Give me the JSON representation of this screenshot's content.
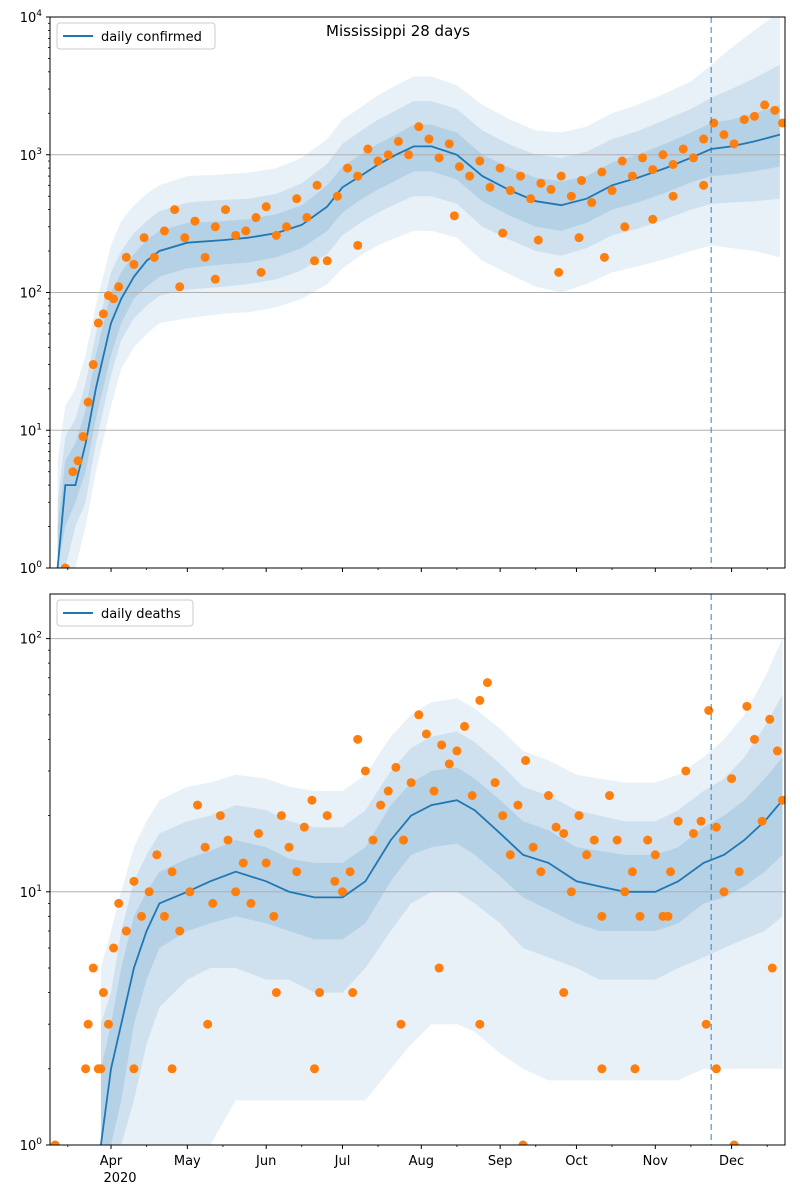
{
  "figure": {
    "title": "Mississippi 28 days",
    "year_label": "2020"
  },
  "colors": {
    "line": "#1f77b4",
    "points": "#ff7f0e",
    "band": "#1f77b4",
    "grid": "#b0b0b0",
    "forecast_line": "#1f77b4"
  },
  "chart_data": [
    {
      "type": "line",
      "name": "confirmed",
      "legend": "daily confirmed",
      "y_scale": "log",
      "ylim": [
        1,
        10000
      ],
      "y_ticks": [
        {
          "v": 1,
          "b": "10",
          "e": "0"
        },
        {
          "v": 10,
          "b": "10",
          "e": "1"
        },
        {
          "v": 100,
          "b": "10",
          "e": "2"
        },
        {
          "v": 1000,
          "b": "10",
          "e": "3"
        },
        {
          "v": 10000,
          "b": "10",
          "e": "4"
        }
      ],
      "grid": "horizontal at decades",
      "legend_position": "top-left",
      "forecast_start": "2020-11-23",
      "line": {
        "x": [
          "2020-03-11",
          "2020-03-14",
          "2020-03-18",
          "2020-03-22",
          "2020-03-26",
          "2020-04-01",
          "2020-04-05",
          "2020-04-10",
          "2020-04-15",
          "2020-04-20",
          "2020-05-01",
          "2020-05-15",
          "2020-05-25",
          "2020-06-05",
          "2020-06-15",
          "2020-06-25",
          "2020-07-01",
          "2020-07-08",
          "2020-07-15",
          "2020-07-22",
          "2020-07-29",
          "2020-08-05",
          "2020-08-15",
          "2020-08-25",
          "2020-09-05",
          "2020-09-15",
          "2020-09-25",
          "2020-10-05",
          "2020-10-15",
          "2020-10-25",
          "2020-11-05",
          "2020-11-15",
          "2020-11-23",
          "2020-12-01",
          "2020-12-10",
          "2020-12-20"
        ],
        "y": [
          1,
          4,
          4,
          8,
          20,
          60,
          90,
          130,
          170,
          200,
          230,
          240,
          250,
          270,
          310,
          420,
          580,
          700,
          850,
          1000,
          1150,
          1150,
          1000,
          700,
          550,
          460,
          430,
          480,
          600,
          680,
          800,
          950,
          1100,
          1150,
          1250,
          1400
        ]
      },
      "band_inner": {
        "lower": [
          1,
          2,
          3,
          5,
          12,
          35,
          60,
          90,
          110,
          130,
          150,
          160,
          165,
          180,
          210,
          280,
          380,
          470,
          560,
          650,
          760,
          760,
          660,
          460,
          360,
          300,
          280,
          320,
          400,
          450,
          530,
          630,
          700,
          720,
          760,
          820
        ],
        "upper": [
          2,
          6,
          8,
          14,
          35,
          100,
          140,
          190,
          240,
          280,
          320,
          330,
          340,
          370,
          430,
          600,
          820,
          1000,
          1200,
          1400,
          1650,
          1650,
          1450,
          1000,
          800,
          680,
          640,
          700,
          880,
          1000,
          1200,
          1450,
          1700,
          1800,
          2000,
          2300
        ]
      },
      "band_mid": {
        "lower": [
          1,
          1,
          2,
          3,
          8,
          25,
          45,
          65,
          80,
          95,
          105,
          110,
          115,
          125,
          145,
          190,
          260,
          320,
          380,
          440,
          500,
          500,
          440,
          300,
          240,
          200,
          185,
          210,
          260,
          290,
          340,
          400,
          440,
          450,
          460,
          480
        ],
        "upper": [
          3,
          9,
          12,
          22,
          50,
          140,
          200,
          270,
          330,
          390,
          450,
          470,
          480,
          520,
          620,
          860,
          1200,
          1480,
          1800,
          2100,
          2450,
          2450,
          2150,
          1500,
          1180,
          1000,
          950,
          1050,
          1300,
          1480,
          1800,
          2150,
          2600,
          3000,
          3600,
          4500
        ]
      },
      "band_outer": {
        "lower": [
          1,
          1,
          1,
          2,
          5,
          15,
          28,
          40,
          50,
          60,
          65,
          70,
          72,
          78,
          90,
          115,
          150,
          185,
          220,
          250,
          280,
          280,
          250,
          170,
          135,
          110,
          100,
          115,
          140,
          155,
          175,
          200,
          220,
          210,
          200,
          180
        ],
        "upper": [
          6,
          15,
          20,
          35,
          80,
          220,
          330,
          430,
          520,
          600,
          700,
          720,
          740,
          800,
          950,
          1300,
          1800,
          2200,
          2700,
          3200,
          3700,
          3700,
          3200,
          2300,
          1800,
          1500,
          1450,
          1600,
          2000,
          2300,
          2800,
          3400,
          4500,
          6000,
          8000,
          11000
        ]
      },
      "points": {
        "x": [
          "2020-03-14",
          "2020-03-17",
          "2020-03-19",
          "2020-03-21",
          "2020-03-23",
          "2020-03-25",
          "2020-03-27",
          "2020-03-29",
          "2020-03-31",
          "2020-04-02",
          "2020-04-04",
          "2020-04-07",
          "2020-04-10",
          "2020-04-14",
          "2020-04-18",
          "2020-04-22",
          "2020-04-26",
          "2020-04-30",
          "2020-05-04",
          "2020-05-08",
          "2020-05-12",
          "2020-05-16",
          "2020-05-20",
          "2020-05-24",
          "2020-05-28",
          "2020-06-01",
          "2020-06-05",
          "2020-06-09",
          "2020-06-13",
          "2020-06-17",
          "2020-06-21",
          "2020-06-25",
          "2020-06-29",
          "2020-07-03",
          "2020-07-07",
          "2020-07-11",
          "2020-07-15",
          "2020-07-19",
          "2020-07-23",
          "2020-07-27",
          "2020-07-31",
          "2020-08-04",
          "2020-08-08",
          "2020-08-12",
          "2020-08-16",
          "2020-08-20",
          "2020-08-24",
          "2020-08-28",
          "2020-09-01",
          "2020-09-05",
          "2020-09-09",
          "2020-09-13",
          "2020-09-17",
          "2020-09-21",
          "2020-09-25",
          "2020-09-29",
          "2020-10-03",
          "2020-10-07",
          "2020-10-11",
          "2020-10-15",
          "2020-10-19",
          "2020-10-23",
          "2020-10-27",
          "2020-10-31",
          "2020-11-04",
          "2020-11-08",
          "2020-11-12",
          "2020-11-16",
          "2020-11-20",
          "2020-11-24",
          "2020-11-28",
          "2020-12-02",
          "2020-12-06",
          "2020-12-10",
          "2020-12-14",
          "2020-12-18",
          "2020-12-21"
        ],
        "y": [
          1,
          5,
          6,
          9,
          16,
          30,
          60,
          70,
          95,
          90,
          110,
          180,
          160,
          250,
          180,
          280,
          400,
          250,
          330,
          180,
          300,
          400,
          260,
          280,
          350,
          420,
          260,
          300,
          480,
          350,
          600,
          170,
          500,
          800,
          700,
          1100,
          900,
          1000,
          1250,
          1000,
          1600,
          1300,
          950,
          1200,
          820,
          700,
          900,
          580,
          800,
          550,
          700,
          480,
          620,
          560,
          700,
          500,
          650,
          450,
          750,
          550,
          900,
          700,
          950,
          780,
          1000,
          850,
          1100,
          950,
          1300,
          1700,
          1400,
          1200,
          1800,
          1900,
          2300,
          2100,
          1700
        ]
      },
      "points_low": {
        "x": [
          "2020-04-28",
          "2020-05-12",
          "2020-05-30",
          "2020-06-20",
          "2020-07-07",
          "2020-08-14",
          "2020-09-02",
          "2020-09-16",
          "2020-09-24",
          "2020-10-02",
          "2020-10-12",
          "2020-10-20",
          "2020-10-31",
          "2020-11-08",
          "2020-11-20"
        ],
        "y": [
          110,
          125,
          140,
          170,
          220,
          360,
          270,
          240,
          140,
          250,
          180,
          300,
          340,
          500,
          600
        ]
      }
    },
    {
      "type": "line",
      "name": "deaths",
      "legend": "daily deaths",
      "y_scale": "log",
      "ylim": [
        1,
        150
      ],
      "y_ticks": [
        {
          "v": 1,
          "b": "10",
          "e": "0"
        },
        {
          "v": 10,
          "b": "10",
          "e": "1"
        },
        {
          "v": 100,
          "b": "10",
          "e": "2"
        }
      ],
      "grid": "horizontal at decades",
      "legend_position": "top-left",
      "forecast_start": "2020-11-23",
      "line": {
        "x": [
          "2020-03-28",
          "2020-04-01",
          "2020-04-05",
          "2020-04-10",
          "2020-04-15",
          "2020-04-20",
          "2020-05-01",
          "2020-05-10",
          "2020-05-20",
          "2020-06-01",
          "2020-06-10",
          "2020-06-20",
          "2020-07-01",
          "2020-07-10",
          "2020-07-20",
          "2020-07-28",
          "2020-08-05",
          "2020-08-15",
          "2020-08-22",
          "2020-09-01",
          "2020-09-10",
          "2020-09-20",
          "2020-10-01",
          "2020-10-10",
          "2020-10-20",
          "2020-11-01",
          "2020-11-10",
          "2020-11-20",
          "2020-11-28",
          "2020-12-06",
          "2020-12-14",
          "2020-12-21"
        ],
        "y": [
          1,
          2,
          3,
          5,
          7,
          9,
          10,
          11,
          12,
          11,
          10,
          9.5,
          9.5,
          11,
          16,
          20,
          22,
          23,
          21,
          17,
          14,
          13,
          11,
          10.5,
          10,
          10,
          11,
          13,
          14,
          16,
          19,
          23
        ]
      },
      "band_inner": {
        "lower": [
          1,
          1,
          1.5,
          3,
          4.5,
          6,
          7,
          7.5,
          8,
          7.5,
          7,
          6.5,
          6.5,
          7.5,
          11,
          14,
          15,
          15.5,
          14,
          11.5,
          9.5,
          8.5,
          7.5,
          7,
          7,
          7,
          7.5,
          9,
          9.5,
          10.5,
          12,
          14
        ],
        "upper": [
          2,
          3,
          5,
          8,
          10,
          12,
          13.5,
          14.5,
          16,
          15,
          13.5,
          13,
          13,
          15,
          22,
          27,
          30,
          31,
          28,
          23,
          19,
          17.5,
          15,
          14.5,
          14,
          14,
          15,
          18,
          20,
          23,
          28,
          34
        ]
      },
      "band_mid": {
        "lower": [
          1,
          1,
          1,
          1.5,
          2.5,
          3.5,
          4.5,
          5,
          5,
          4.5,
          4.5,
          4,
          4,
          5,
          7,
          9,
          10,
          10,
          9,
          7.5,
          6,
          5.5,
          5,
          4.5,
          4.5,
          4.5,
          5,
          5.5,
          6,
          6.5,
          7,
          8
        ],
        "upper": [
          3,
          4,
          7,
          11,
          14,
          17,
          19,
          20,
          22,
          21,
          19,
          18,
          18,
          21,
          30,
          37,
          41,
          43,
          39,
          32,
          26,
          24,
          21,
          20,
          19,
          19,
          21,
          25,
          28,
          34,
          45,
          60
        ]
      },
      "band_outer": {
        "lower": [
          1,
          1,
          1,
          1,
          1,
          1,
          1,
          1,
          1.5,
          1.5,
          1.5,
          1.5,
          1.5,
          1.5,
          2,
          2.5,
          3,
          3,
          2.8,
          2.3,
          2,
          1.8,
          1.8,
          1.8,
          1.8,
          1.8,
          1.8,
          2,
          2,
          2,
          2,
          2
        ],
        "upper": [
          5,
          7,
          10,
          15,
          19,
          23,
          26,
          27,
          29,
          28,
          26,
          25,
          25,
          29,
          41,
          50,
          56,
          58,
          53,
          44,
          36,
          33,
          29,
          28,
          27,
          27,
          29,
          34,
          40,
          50,
          70,
          100
        ]
      },
      "points": {
        "x": [
          "2020-03-10",
          "2020-03-22",
          "2020-03-23",
          "2020-03-25",
          "2020-03-27",
          "2020-03-29",
          "2020-03-31",
          "2020-04-02",
          "2020-04-04",
          "2020-04-07",
          "2020-04-10",
          "2020-04-13",
          "2020-04-16",
          "2020-04-19",
          "2020-04-22",
          "2020-04-25",
          "2020-04-28",
          "2020-05-02",
          "2020-05-05",
          "2020-05-08",
          "2020-05-11",
          "2020-05-14",
          "2020-05-17",
          "2020-05-20",
          "2020-05-23",
          "2020-05-26",
          "2020-05-29",
          "2020-06-01",
          "2020-06-04",
          "2020-06-07",
          "2020-06-10",
          "2020-06-13",
          "2020-06-16",
          "2020-06-19",
          "2020-06-22",
          "2020-06-25",
          "2020-06-28",
          "2020-07-01",
          "2020-07-04",
          "2020-07-07",
          "2020-07-10",
          "2020-07-13",
          "2020-07-16",
          "2020-07-19",
          "2020-07-22",
          "2020-07-25",
          "2020-07-28",
          "2020-07-31",
          "2020-08-03",
          "2020-08-06",
          "2020-08-09",
          "2020-08-12",
          "2020-08-15",
          "2020-08-18",
          "2020-08-21",
          "2020-08-24",
          "2020-08-27",
          "2020-08-30",
          "2020-09-02",
          "2020-09-05",
          "2020-09-08",
          "2020-09-11",
          "2020-09-14",
          "2020-09-17",
          "2020-09-20",
          "2020-09-23",
          "2020-09-26",
          "2020-09-29",
          "2020-10-02",
          "2020-10-05",
          "2020-10-08",
          "2020-10-11",
          "2020-10-14",
          "2020-10-17",
          "2020-10-20",
          "2020-10-23",
          "2020-10-26",
          "2020-10-29",
          "2020-11-01",
          "2020-11-04",
          "2020-11-07",
          "2020-11-10",
          "2020-11-13",
          "2020-11-16",
          "2020-11-19",
          "2020-11-22",
          "2020-11-25",
          "2020-11-28",
          "2020-12-01",
          "2020-12-04",
          "2020-12-07",
          "2020-12-10",
          "2020-12-13",
          "2020-12-16",
          "2020-12-19",
          "2020-12-21"
        ],
        "y": [
          1,
          2,
          3,
          5,
          2,
          4,
          3,
          6,
          9,
          7,
          11,
          8,
          10,
          14,
          8,
          12,
          7,
          10,
          22,
          15,
          9,
          20,
          16,
          10,
          13,
          9,
          17,
          13,
          8,
          20,
          15,
          12,
          18,
          23,
          4,
          20,
          11,
          10,
          12,
          40,
          30,
          16,
          22,
          25,
          31,
          16,
          27,
          50,
          42,
          25,
          38,
          32,
          36,
          45,
          24,
          57,
          67,
          27,
          20,
          14,
          22,
          33,
          15,
          12,
          24,
          18,
          17,
          10,
          20,
          14,
          16,
          8,
          24,
          16,
          10,
          12,
          8,
          16,
          14,
          8,
          12,
          19,
          30,
          17,
          19,
          52,
          18,
          10,
          28,
          12,
          54,
          40,
          19,
          48,
          36,
          23
        ]
      },
      "points_low": {
        "x": [
          "2020-03-28",
          "2020-04-10",
          "2020-04-25",
          "2020-05-09",
          "2020-06-05",
          "2020-06-20",
          "2020-07-05",
          "2020-07-24",
          "2020-08-08",
          "2020-08-24",
          "2020-09-10",
          "2020-09-26",
          "2020-10-11",
          "2020-10-24",
          "2020-11-06",
          "2020-11-21",
          "2020-11-25",
          "2020-12-02",
          "2020-12-17"
        ],
        "y": [
          2,
          2,
          2,
          3,
          4,
          2,
          4,
          3,
          5,
          3,
          1,
          4,
          2,
          2,
          8,
          3,
          2,
          1,
          5
        ]
      }
    }
  ],
  "x_axis": {
    "range": [
      "2020-03-08",
      "2020-12-22"
    ],
    "month_labels": [
      {
        "date": "2020-04-01",
        "label": "Apr"
      },
      {
        "date": "2020-05-01",
        "label": "May"
      },
      {
        "date": "2020-06-01",
        "label": "Jun"
      },
      {
        "date": "2020-07-01",
        "label": "Jul"
      },
      {
        "date": "2020-08-01",
        "label": "Aug"
      },
      {
        "date": "2020-09-01",
        "label": "Sep"
      },
      {
        "date": "2020-10-01",
        "label": "Oct"
      },
      {
        "date": "2020-11-01",
        "label": "Nov"
      },
      {
        "date": "2020-12-01",
        "label": "Dec"
      }
    ]
  }
}
